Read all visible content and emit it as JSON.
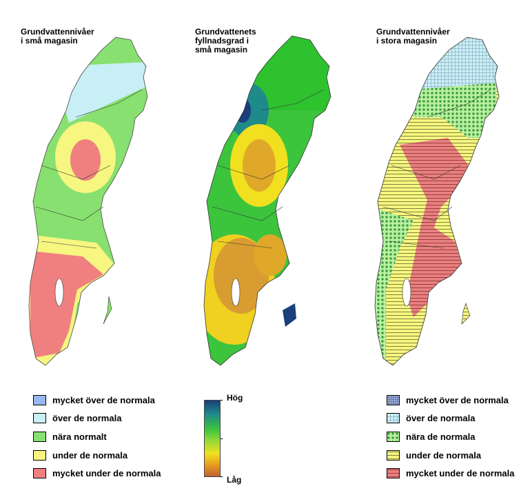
{
  "maps": [
    {
      "title": "Grundvattennivåer\ni små magasin"
    },
    {
      "title": "Grundvattenets\nfyllnadsgrad i\nsmå magasin"
    },
    {
      "title": "Grundvattennivåer\ni stora magasin"
    }
  ],
  "legend_small": [
    {
      "label": "mycket över de normala",
      "color": "#99b8f0"
    },
    {
      "label": "över de normala",
      "color": "#c8eef6"
    },
    {
      "label": "nära normalt",
      "color": "#88e070"
    },
    {
      "label": "under de normala",
      "color": "#f6f680"
    },
    {
      "label": "mycket under de normala",
      "color": "#f08080"
    }
  ],
  "ramp": {
    "high_label": "Hög",
    "low_label": "Låg"
  },
  "legend_large": [
    {
      "label": "mycket över de normala",
      "pattern": "dense-grid"
    },
    {
      "label": "över de normala",
      "pattern": "grid"
    },
    {
      "label": "nära de normala",
      "pattern": "dots"
    },
    {
      "label": "under de normala",
      "pattern": "hlines-yellow"
    },
    {
      "label": "mycket under de normala",
      "pattern": "hlines-red"
    }
  ]
}
